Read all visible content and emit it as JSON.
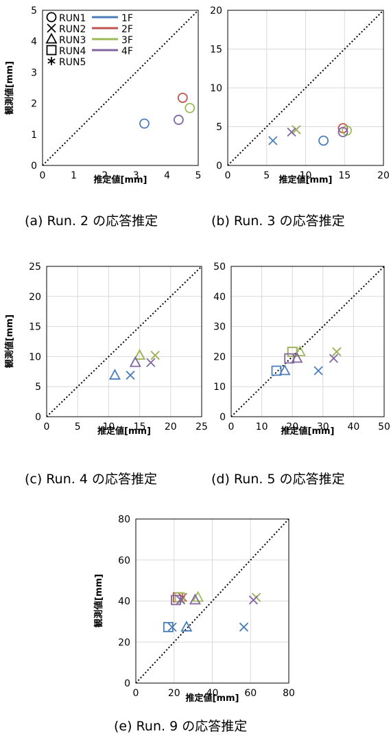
{
  "colors": {
    "1F": "#4a7ebb",
    "2F": "#c0504d",
    "3F": "#9bbb59",
    "4F": "#8064a2",
    "grid": "#d9d9d9",
    "diag": "#000000"
  },
  "legend": {
    "runs": [
      {
        "label": "RUN1",
        "marker": "circle"
      },
      {
        "label": "RUN2",
        "marker": "x"
      },
      {
        "label": "RUN3",
        "marker": "triangle"
      },
      {
        "label": "RUN4",
        "marker": "square"
      },
      {
        "label": "RUN5",
        "marker": "star"
      }
    ],
    "floors": [
      "1F",
      "2F",
      "3F",
      "4F"
    ],
    "run_glyphs": [
      "○",
      "×",
      "△",
      "□",
      "＊"
    ]
  },
  "chart_data": [
    {
      "id": "a",
      "type": "scatter",
      "caption": "(a)  Run. 2 の応答推定",
      "xlabel": "推定値[mm]",
      "ylabel": "観測値[mm]",
      "xlim": [
        0,
        5
      ],
      "ylim": [
        0,
        5
      ],
      "xticks": [
        0,
        1,
        2,
        3,
        4,
        5
      ],
      "yticks": [
        0,
        1,
        2,
        3,
        4,
        5
      ],
      "grid": false,
      "legend_position": "top-left",
      "diagonal": true,
      "series": [
        {
          "name": "1F",
          "marker": "circle",
          "points": [
            [
              3.27,
              1.35
            ]
          ]
        },
        {
          "name": "2F",
          "marker": "circle",
          "points": [
            [
              4.5,
              2.18
            ]
          ]
        },
        {
          "name": "3F",
          "marker": "circle",
          "points": [
            [
              4.73,
              1.85
            ]
          ]
        },
        {
          "name": "4F",
          "marker": "circle",
          "points": [
            [
              4.37,
              1.47
            ]
          ]
        }
      ]
    },
    {
      "id": "b",
      "type": "scatter",
      "caption": "(b)  Run. 3 の応答推定",
      "xlabel": "推定値[mm]",
      "ylabel": "",
      "xlim": [
        0,
        20
      ],
      "ylim": [
        0,
        20
      ],
      "xticks": [
        0,
        5,
        10,
        15,
        20
      ],
      "yticks": [
        0,
        5,
        10,
        15,
        20
      ],
      "grid": true,
      "diagonal": true,
      "series": [
        {
          "name": "1F",
          "marker": "circle",
          "points": [
            [
              12.3,
              3.2
            ]
          ]
        },
        {
          "name": "1F",
          "marker": "x",
          "points": [
            [
              5.8,
              3.2
            ]
          ]
        },
        {
          "name": "2F",
          "marker": "circle",
          "points": [
            [
              14.8,
              4.8
            ]
          ]
        },
        {
          "name": "2F",
          "marker": "x",
          "points": [
            [
              8.8,
              4.6
            ]
          ]
        },
        {
          "name": "3F",
          "marker": "circle",
          "points": [
            [
              15.3,
              4.5
            ]
          ]
        },
        {
          "name": "3F",
          "marker": "x",
          "points": [
            [
              8.8,
              4.6
            ]
          ]
        },
        {
          "name": "4F",
          "marker": "circle",
          "points": [
            [
              14.8,
              4.3
            ]
          ]
        },
        {
          "name": "4F",
          "marker": "x",
          "points": [
            [
              8.2,
              4.3
            ]
          ]
        }
      ]
    },
    {
      "id": "c",
      "type": "scatter",
      "caption": "(c)  Run. 4 の応答推定",
      "xlabel": "推定値[mm]",
      "ylabel": "観測値[mm]",
      "xlim": [
        0,
        25
      ],
      "ylim": [
        0,
        25
      ],
      "xticks": [
        0,
        5,
        10,
        15,
        20,
        25
      ],
      "yticks": [
        0,
        5,
        10,
        15,
        20,
        25
      ],
      "grid": true,
      "diagonal": true,
      "series": [
        {
          "name": "1F",
          "marker": "triangle",
          "points": [
            [
              11.0,
              6.9
            ]
          ]
        },
        {
          "name": "1F",
          "marker": "x",
          "points": [
            [
              13.5,
              6.9
            ]
          ]
        },
        {
          "name": "2F",
          "marker": "triangle",
          "points": [
            [
              15.0,
              10.2
            ]
          ]
        },
        {
          "name": "2F",
          "marker": "x",
          "points": [
            [
              17.5,
              10.2
            ]
          ]
        },
        {
          "name": "3F",
          "marker": "triangle",
          "points": [
            [
              15.0,
              10.2
            ]
          ]
        },
        {
          "name": "3F",
          "marker": "x",
          "points": [
            [
              17.5,
              10.2
            ]
          ]
        },
        {
          "name": "4F",
          "marker": "triangle",
          "points": [
            [
              14.3,
              9.0
            ]
          ]
        },
        {
          "name": "4F",
          "marker": "x",
          "points": [
            [
              16.8,
              9.0
            ]
          ]
        }
      ]
    },
    {
      "id": "d",
      "type": "scatter",
      "caption": "(d)  Run. 5 の応答推定",
      "xlabel": "推定値[mm]",
      "ylabel": "",
      "xlim": [
        0,
        50
      ],
      "ylim": [
        0,
        50
      ],
      "xticks": [
        0,
        10,
        20,
        30,
        40,
        50
      ],
      "yticks": [
        0,
        10,
        20,
        30,
        40,
        50
      ],
      "grid": true,
      "diagonal": true,
      "series": [
        {
          "name": "1F",
          "marker": "square",
          "points": [
            [
              14.8,
              15.3
            ]
          ]
        },
        {
          "name": "1F",
          "marker": "triangle",
          "points": [
            [
              17.5,
              15.3
            ]
          ]
        },
        {
          "name": "1F",
          "marker": "x",
          "points": [
            [
              28.5,
              15.3
            ]
          ]
        },
        {
          "name": "2F",
          "marker": "square",
          "points": [
            [
              20.0,
              21.6
            ]
          ]
        },
        {
          "name": "2F",
          "marker": "x",
          "points": [
            [
              34.5,
              21.6
            ]
          ]
        },
        {
          "name": "3F",
          "marker": "square",
          "points": [
            [
              20.0,
              21.6
            ]
          ]
        },
        {
          "name": "3F",
          "marker": "triangle",
          "points": [
            [
              22.5,
              21.6
            ]
          ]
        },
        {
          "name": "3F",
          "marker": "x",
          "points": [
            [
              34.5,
              21.6
            ]
          ]
        },
        {
          "name": "4F",
          "marker": "square",
          "points": [
            [
              19.0,
              19.4
            ]
          ]
        },
        {
          "name": "4F",
          "marker": "triangle",
          "points": [
            [
              21.5,
              19.4
            ]
          ]
        },
        {
          "name": "4F",
          "marker": "x",
          "points": [
            [
              33.5,
              19.4
            ]
          ]
        }
      ]
    },
    {
      "id": "e",
      "type": "scatter",
      "caption": "(e)  Run. 9 の応答推定",
      "xlabel": "推定値[mm]",
      "ylabel": "観測値[mm]",
      "xlim": [
        0,
        80
      ],
      "ylim": [
        0,
        80
      ],
      "xticks": [
        0,
        20,
        40,
        60,
        80
      ],
      "yticks": [
        0,
        20,
        40,
        60,
        80
      ],
      "grid": true,
      "diagonal": true,
      "series": [
        {
          "name": "1F",
          "marker": "square",
          "points": [
            [
              17.0,
              27.3
            ]
          ]
        },
        {
          "name": "1F",
          "marker": "x",
          "points": [
            [
              19.0,
              27.3
            ]
          ]
        },
        {
          "name": "1F",
          "marker": "triangle",
          "points": [
            [
              26.5,
              27.3
            ]
          ]
        },
        {
          "name": "1F",
          "marker": "x",
          "points": [
            [
              56.5,
              27.3
            ]
          ]
        },
        {
          "name": "2F",
          "marker": "square",
          "points": [
            [
              22.0,
              41.8
            ]
          ]
        },
        {
          "name": "2F",
          "marker": "x",
          "points": [
            [
              24.5,
              41.8
            ]
          ]
        },
        {
          "name": "2F",
          "marker": "x",
          "points": [
            [
              63.0,
              41.8
            ]
          ]
        },
        {
          "name": "3F",
          "marker": "square",
          "points": [
            [
              23.0,
              41.8
            ]
          ]
        },
        {
          "name": "3F",
          "marker": "triangle",
          "points": [
            [
              32.5,
              41.8
            ]
          ]
        },
        {
          "name": "3F",
          "marker": "x",
          "points": [
            [
              63.0,
              41.8
            ]
          ]
        },
        {
          "name": "4F",
          "marker": "square",
          "points": [
            [
              21.0,
              40.5
            ]
          ]
        },
        {
          "name": "4F",
          "marker": "x",
          "points": [
            [
              23.5,
              40.5
            ]
          ]
        },
        {
          "name": "4F",
          "marker": "triangle",
          "points": [
            [
              31.0,
              40.5
            ]
          ]
        },
        {
          "name": "4F",
          "marker": "x",
          "points": [
            [
              61.5,
              40.5
            ]
          ]
        }
      ]
    }
  ]
}
